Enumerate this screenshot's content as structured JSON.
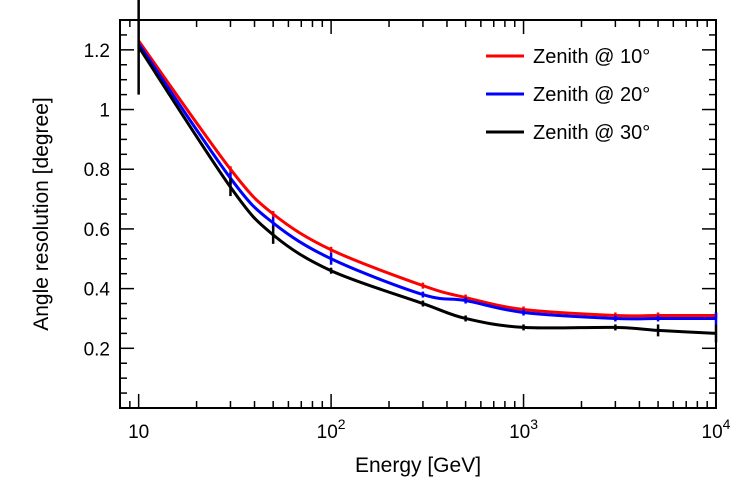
{
  "chart_data": {
    "type": "line",
    "xlabel": "Energy [GeV]",
    "ylabel": "Angle resolution [degree]",
    "xscale": "log",
    "xlim": [
      8,
      10000
    ],
    "ylim": [
      0,
      1.3
    ],
    "x_ticks": [
      {
        "value": 10,
        "base": "10",
        "exp": ""
      },
      {
        "value": 100,
        "base": "10",
        "exp": "2"
      },
      {
        "value": 1000,
        "base": "10",
        "exp": "3"
      },
      {
        "value": 10000,
        "base": "10",
        "exp": "4"
      }
    ],
    "y_ticks": [
      {
        "value": 0.2,
        "label": "0.2"
      },
      {
        "value": 0.4,
        "label": "0.4"
      },
      {
        "value": 0.6,
        "label": "0.6"
      },
      {
        "value": 0.8,
        "label": "0.8"
      },
      {
        "value": 1.0,
        "label": "1"
      },
      {
        "value": 1.2,
        "label": "1.2"
      }
    ],
    "grid": false,
    "legend_position": "top-right",
    "x": [
      10,
      30,
      50,
      100,
      300,
      500,
      1000,
      3000,
      5000,
      10000
    ],
    "series": [
      {
        "name": "Zenith @ 10°",
        "color": "#ff0000",
        "values": [
          1.23,
          0.8,
          0.65,
          0.53,
          0.41,
          0.37,
          0.33,
          0.31,
          0.31,
          0.31
        ],
        "errors": [
          0.0,
          0.01,
          0.01,
          0.01,
          0.01,
          0.01,
          0.01,
          0.01,
          0.01,
          0.01
        ]
      },
      {
        "name": "Zenith @ 20°",
        "color": "#0000ff",
        "values": [
          1.22,
          0.77,
          0.62,
          0.5,
          0.38,
          0.36,
          0.32,
          0.3,
          0.3,
          0.3
        ],
        "errors": [
          0.0,
          0.02,
          0.02,
          0.02,
          0.01,
          0.01,
          0.01,
          0.01,
          0.01,
          0.02
        ]
      },
      {
        "name": "Zenith @ 30°",
        "color": "#000000",
        "values": [
          1.21,
          0.74,
          0.58,
          0.46,
          0.35,
          0.3,
          0.27,
          0.27,
          0.26,
          0.25
        ],
        "errors": [
          0.16,
          0.03,
          0.03,
          0.01,
          0.01,
          0.01,
          0.01,
          0.01,
          0.02,
          0.03
        ]
      }
    ]
  }
}
